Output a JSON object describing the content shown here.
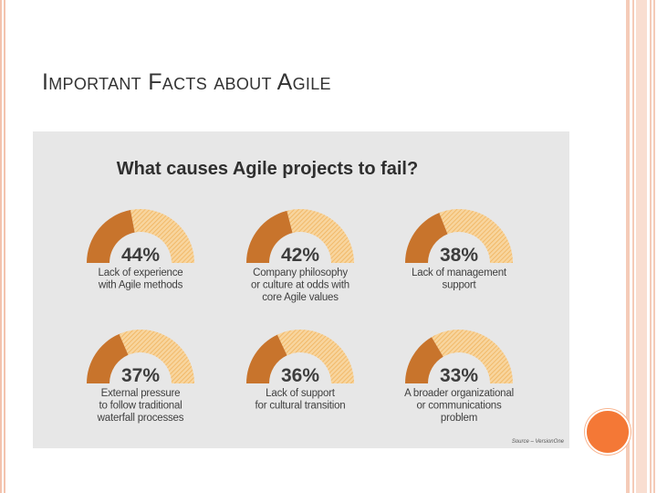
{
  "slide": {
    "title": "Important Facts about Agile"
  },
  "chart_data": {
    "type": "gauge",
    "title": "What causes Agile projects to fail?",
    "unit": "%",
    "items": [
      {
        "value": 44,
        "label": "44%",
        "caption": [
          "Lack of experience",
          "with Agile methods"
        ]
      },
      {
        "value": 42,
        "label": "42%",
        "caption": [
          "Company philosophy",
          "or culture at odds with",
          "core Agile values"
        ]
      },
      {
        "value": 38,
        "label": "38%",
        "caption": [
          "Lack of management",
          "support"
        ]
      },
      {
        "value": 37,
        "label": "37%",
        "caption": [
          "External pressure",
          "to follow traditional",
          "waterfall processes"
        ]
      },
      {
        "value": 36,
        "label": "36%",
        "caption": [
          "Lack of support",
          "for cultural transition"
        ]
      },
      {
        "value": 33,
        "label": "33%",
        "caption": [
          "A broader organizational",
          "or communications",
          "problem"
        ]
      }
    ],
    "source": "Source – VersionOne",
    "colors": {
      "filled": "#c8742c",
      "remainder": "#f6c883",
      "background": "#e7e7e7",
      "text": "#3f3f3f"
    }
  }
}
